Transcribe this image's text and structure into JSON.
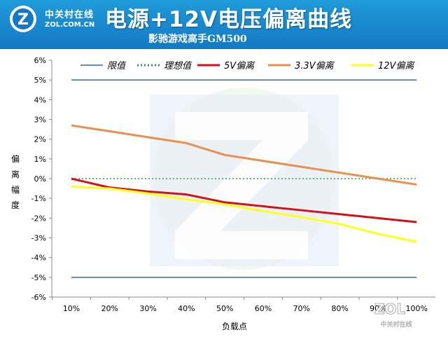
{
  "header": {
    "logo_cn": "中关村在线",
    "logo_en": "ZOL.COM.CN",
    "logo_glyph": "Z",
    "title": "电源+12V电压偏离曲线",
    "subtitle": "影驰游戏高手GM500"
  },
  "watermark": {
    "text": "ZOL",
    "sub": "中关村在线"
  },
  "chart_data": {
    "type": "line",
    "x": [
      "10%",
      "20%",
      "30%",
      "40%",
      "50%",
      "60%",
      "70%",
      "80%",
      "90%",
      "100%"
    ],
    "xlabel": "负载点",
    "ylabel": [
      "偏",
      "离",
      "幅",
      "度"
    ],
    "ylim": [
      -6,
      6
    ],
    "yticks": [
      -6,
      -5,
      -4,
      -3,
      -2,
      -1,
      0,
      1,
      2,
      3,
      4,
      5,
      6
    ],
    "ytick_labels": [
      "-6%",
      "-5%",
      "-4%",
      "-3%",
      "-2%",
      "-1%",
      "0%",
      "1%",
      "2%",
      "3%",
      "4%",
      "5%",
      "6%"
    ],
    "grid": false,
    "legend_position": "top",
    "series": [
      {
        "name": "限值",
        "color": "#2e6da4",
        "style": "solid",
        "width": 1.5,
        "lines": [
          5,
          -5
        ]
      },
      {
        "name": "理想值",
        "color": "#2e9a4a",
        "style": "dotted",
        "width": 1.5,
        "values": [
          0,
          0,
          0,
          0,
          0,
          0,
          0,
          0,
          0,
          0
        ]
      },
      {
        "name": "5V偏离",
        "color": "#d0121b",
        "style": "solid",
        "width": 3,
        "values": [
          0.0,
          -0.45,
          -0.65,
          -0.8,
          -1.2,
          -1.4,
          -1.6,
          -1.8,
          -2.0,
          -2.2
        ]
      },
      {
        "name": "3.3V偏离",
        "color": "#e8904f",
        "style": "solid",
        "width": 3,
        "values": [
          2.7,
          2.4,
          2.1,
          1.8,
          1.2,
          0.9,
          0.6,
          0.3,
          0.0,
          -0.3
        ]
      },
      {
        "name": "12V偏离",
        "color": "#ffff1e",
        "style": "solid",
        "width": 3,
        "values": [
          -0.4,
          -0.5,
          -0.75,
          -1.05,
          -1.3,
          -1.65,
          -1.95,
          -2.3,
          -2.8,
          -3.2
        ]
      }
    ]
  }
}
